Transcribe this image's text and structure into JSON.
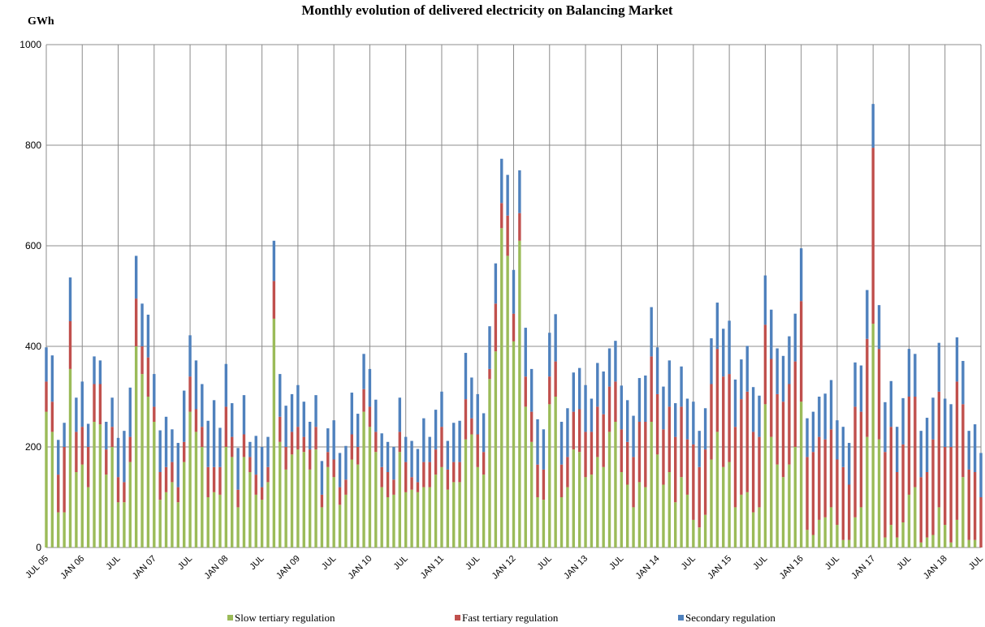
{
  "chart_data": {
    "type": "stacked_bar",
    "title": "Monthly evolution of delivered electricity on Balancing Market",
    "y_label": "GWh",
    "categories": [
      "JUL 05",
      null,
      null,
      null,
      null,
      null,
      "JAN 06",
      null,
      null,
      null,
      null,
      null,
      "JUL",
      null,
      null,
      null,
      null,
      null,
      "JAN 07",
      null,
      null,
      null,
      null,
      null,
      "JUL",
      null,
      null,
      null,
      null,
      null,
      "JAN 08",
      null,
      null,
      null,
      null,
      null,
      "JUL",
      null,
      null,
      null,
      null,
      null,
      "JAN 09",
      null,
      null,
      null,
      null,
      null,
      "JUL",
      null,
      null,
      null,
      null,
      null,
      "JAN 10",
      null,
      null,
      null,
      null,
      null,
      "JUL",
      null,
      null,
      null,
      null,
      null,
      "JAN 11",
      null,
      null,
      null,
      null,
      null,
      "JUL",
      null,
      null,
      null,
      null,
      null,
      "JAN 12",
      null,
      null,
      null,
      null,
      null,
      "JUL",
      null,
      null,
      null,
      null,
      null,
      "JAN 13",
      null,
      null,
      null,
      null,
      null,
      "JUL",
      null,
      null,
      null,
      null,
      null,
      "JAN 14",
      null,
      null,
      null,
      null,
      null,
      "JUL",
      null,
      null,
      null,
      null,
      null,
      "JAN 15",
      null,
      null,
      null,
      null,
      null,
      "JUL",
      null,
      null,
      null,
      null,
      null,
      "JAN 16",
      null,
      null,
      null,
      null,
      null,
      "JUL",
      null,
      null,
      null,
      null,
      null,
      "JAN 17",
      null,
      null,
      null,
      null,
      null,
      "JUL",
      null,
      null,
      null,
      null,
      null,
      "JAN 18",
      null,
      null,
      null,
      null,
      null,
      "JUL"
    ],
    "series": [
      {
        "name": "Slow tertiary regulation",
        "color": "#9bbb59",
        "values": [
          270,
          230,
          70,
          70,
          355,
          150,
          165,
          120,
          250,
          245,
          145,
          200,
          90,
          90,
          170,
          400,
          345,
          300,
          250,
          95,
          110,
          130,
          90,
          170,
          270,
          230,
          200,
          100,
          110,
          105,
          200,
          180,
          80,
          180,
          150,
          105,
          95,
          130,
          455,
          210,
          155,
          185,
          195,
          190,
          155,
          195,
          80,
          160,
          140,
          85,
          105,
          175,
          165,
          270,
          240,
          190,
          120,
          100,
          105,
          190,
          110,
          115,
          110,
          120,
          120,
          145,
          160,
          115,
          130,
          130,
          215,
          225,
          160,
          145,
          335,
          390,
          635,
          580,
          410,
          610,
          280,
          210,
          100,
          95,
          285,
          300,
          100,
          120,
          195,
          190,
          140,
          145,
          180,
          160,
          230,
          250,
          150,
          125,
          80,
          130,
          120,
          250,
          185,
          125,
          150,
          90,
          140,
          105,
          55,
          40,
          65,
          175,
          230,
          160,
          170,
          80,
          105,
          110,
          70,
          80,
          285,
          220,
          165,
          140,
          165,
          200,
          290,
          35,
          25,
          55,
          60,
          80,
          45,
          15,
          15,
          60,
          80,
          220,
          445,
          215,
          20,
          45,
          20,
          50,
          105,
          120,
          10,
          20,
          25,
          80,
          45,
          10,
          55,
          140,
          15,
          15,
          0
        ]
      },
      {
        "name": "Fast tertiary regulation",
        "color": "#c0504d",
        "values": [
          60,
          60,
          75,
          130,
          95,
          80,
          75,
          80,
          75,
          80,
          50,
          40,
          50,
          40,
          50,
          95,
          55,
          78,
          30,
          55,
          50,
          40,
          30,
          40,
          70,
          45,
          40,
          60,
          50,
          55,
          80,
          40,
          35,
          45,
          30,
          40,
          25,
          30,
          75,
          50,
          45,
          45,
          45,
          30,
          40,
          45,
          25,
          30,
          35,
          35,
          30,
          50,
          35,
          45,
          40,
          40,
          40,
          50,
          30,
          40,
          60,
          25,
          20,
          50,
          50,
          50,
          80,
          40,
          40,
          40,
          80,
          32,
          65,
          45,
          20,
          95,
          50,
          80,
          55,
          55,
          60,
          60,
          65,
          60,
          55,
          70,
          65,
          60,
          75,
          85,
          90,
          85,
          100,
          105,
          90,
          80,
          85,
          85,
          100,
          120,
          130,
          130,
          120,
          110,
          130,
          130,
          140,
          110,
          150,
          120,
          130,
          150,
          165,
          180,
          175,
          160,
          190,
          200,
          160,
          140,
          158,
          155,
          140,
          150,
          160,
          170,
          200,
          145,
          165,
          165,
          155,
          155,
          130,
          145,
          110,
          220,
          190,
          195,
          350,
          180,
          170,
          195,
          130,
          155,
          195,
          180,
          130,
          130,
          190,
          230,
          155,
          190,
          275,
          145,
          140,
          135,
          100
        ]
      },
      {
        "name": "Secondary regulation",
        "color": "#4f81bd",
        "values": [
          68,
          92,
          69,
          48,
          87,
          68,
          90,
          46,
          55,
          47,
          55,
          58,
          78,
          102,
          98,
          85,
          85,
          85,
          65,
          83,
          100,
          65,
          88,
          102,
          82,
          97,
          85,
          92,
          133,
          78,
          85,
          67,
          83,
          78,
          30,
          77,
          80,
          60,
          80,
          85,
          82,
          75,
          83,
          70,
          55,
          63,
          67,
          47,
          78,
          68,
          67,
          83,
          66,
          70,
          75,
          64,
          67,
          60,
          65,
          68,
          50,
          72,
          66,
          87,
          50,
          79,
          70,
          57,
          78,
          82,
          92,
          81,
          80,
          77,
          85,
          80,
          88,
          81,
          87,
          85,
          97,
          85,
          90,
          80,
          87,
          94,
          85,
          97,
          78,
          82,
          93,
          66,
          87,
          85,
          76,
          81,
          87,
          83,
          82,
          87,
          92,
          98,
          93,
          85,
          92,
          67,
          80,
          81,
          85,
          72,
          82,
          91,
          92,
          95,
          106,
          94,
          79,
          91,
          89,
          82,
          98,
          98,
          91,
          91,
          95,
          95,
          105,
          77,
          80,
          80,
          91,
          98,
          78,
          80,
          83,
          88,
          92,
          97,
          87,
          87,
          99,
          91,
          90,
          92,
          95,
          85,
          92,
          108,
          83,
          97,
          96,
          85,
          88,
          86,
          77,
          95,
          88
        ]
      }
    ],
    "ylim": [
      0,
      1000
    ],
    "yticks": [
      0,
      200,
      400,
      600,
      800,
      1000
    ],
    "grid": true
  }
}
